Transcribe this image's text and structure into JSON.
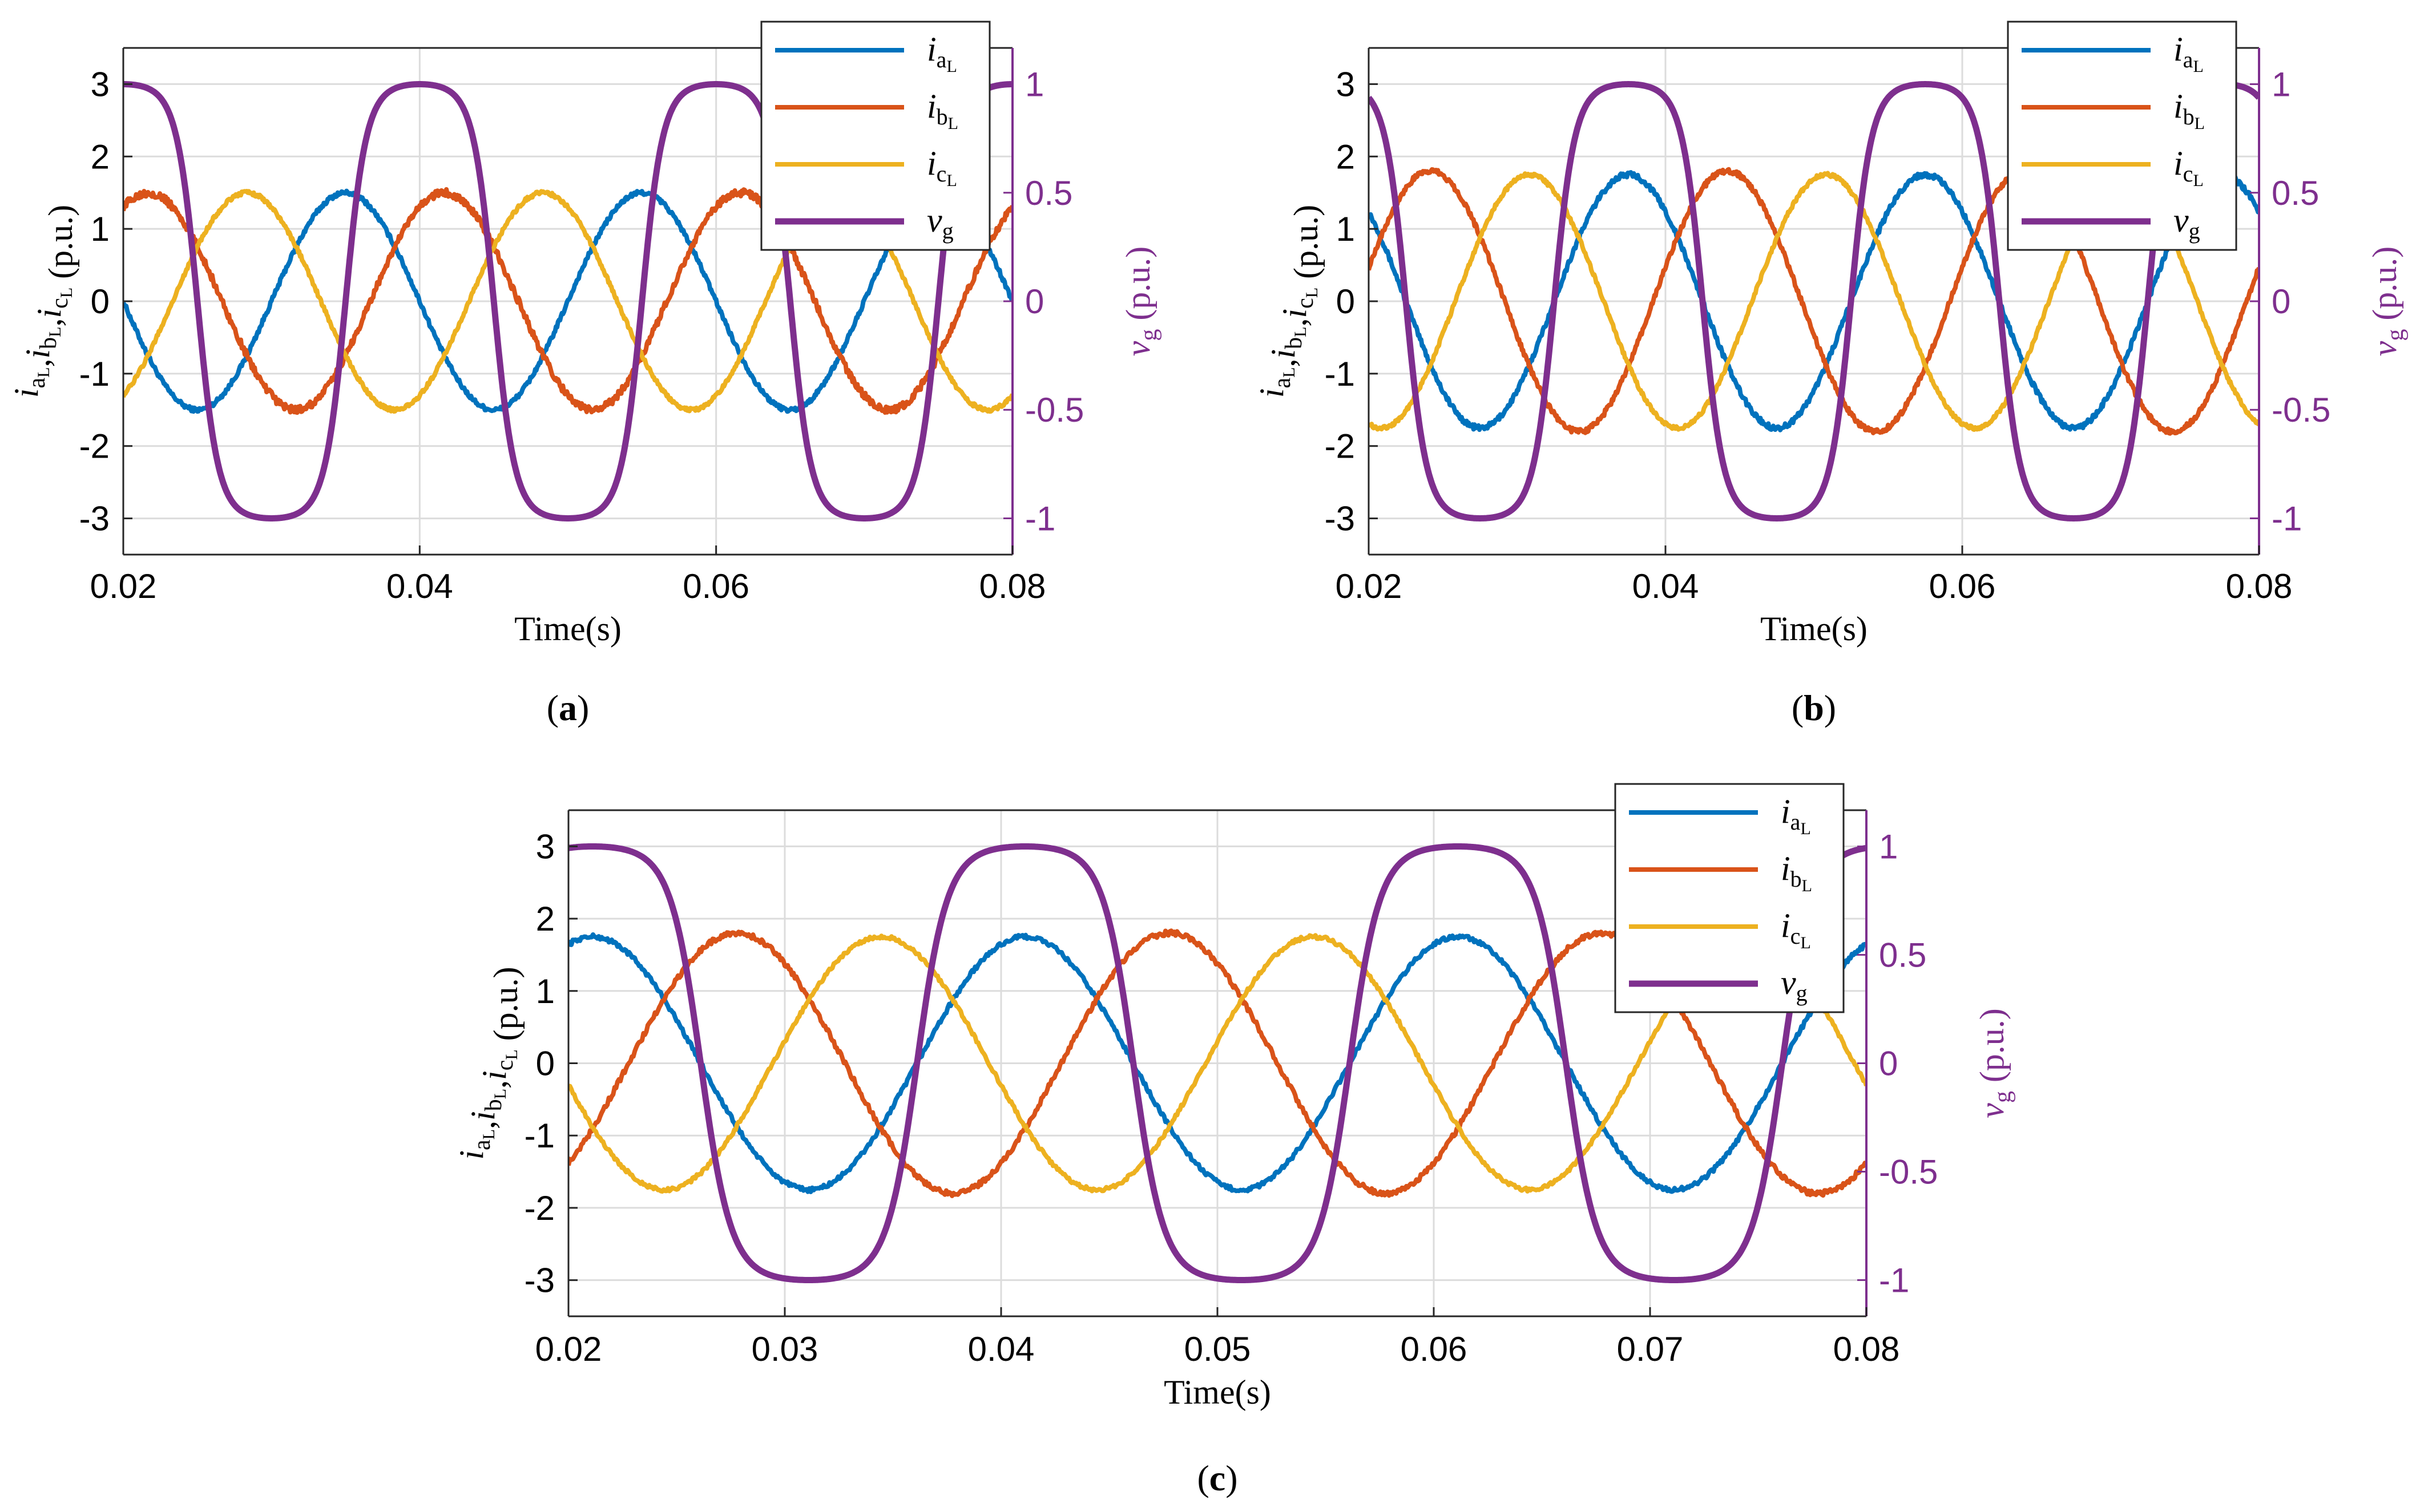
{
  "figure_description": "Three-phase load currents and grid voltage",
  "chart_data": [
    {
      "id": "a",
      "type": "line",
      "caption": "(a)",
      "xlabel": "Time(s)",
      "ylabel_left": {
        "vars": [
          "i",
          "a",
          ",",
          "i",
          "b",
          ",",
          "i",
          "c"
        ],
        "sub_L": "L",
        "unit": "(p.u.)"
      },
      "ylabel_right": {
        "var": "v",
        "sub": "g",
        "unit": "(p.u.)"
      },
      "xlim": [
        0.02,
        0.08
      ],
      "ylim_left": [
        -3.5,
        3.5
      ],
      "ylim_right": [
        -1.167,
        1.167
      ],
      "xticks": [
        0.02,
        0.04,
        0.06,
        0.08
      ],
      "xtick_labels": [
        "0.02",
        "0.04",
        "0.06",
        "0.08"
      ],
      "yticks_left": [
        3,
        2,
        1,
        0,
        -1,
        -2,
        -3
      ],
      "ytick_labels_left": [
        "3",
        "2",
        "1",
        "0",
        "-1",
        "-2",
        "-3"
      ],
      "yticks_right": [
        1,
        0.5,
        0,
        -0.5,
        -1
      ],
      "ytick_labels_right": [
        "1",
        "0.5",
        "0",
        "-0.5",
        "-1"
      ],
      "legend_position": "top-right",
      "series": [
        {
          "name": "i_aL",
          "label_main": "i",
          "label_sub": "a",
          "label_subsub": "L",
          "color": "#0072BD",
          "axis": "left",
          "amplitude": 1.5,
          "phase_deg": 90,
          "period": 0.02,
          "noise": 0.06
        },
        {
          "name": "i_bL",
          "label_main": "i",
          "label_sub": "b",
          "label_subsub": "L",
          "color": "#D95319",
          "axis": "left",
          "amplitude": 1.5,
          "phase_deg": -30,
          "period": 0.02,
          "noise": 0.1
        },
        {
          "name": "i_cL",
          "label_main": "i",
          "label_sub": "c",
          "label_subsub": "L",
          "color": "#EDB120",
          "axis": "left",
          "amplitude": 1.5,
          "phase_deg": 210,
          "period": 0.02,
          "noise": 0.05
        },
        {
          "name": "v_g",
          "label_main": "v",
          "label_sub": "g",
          "label_subsub": "",
          "color": "#7E2F8E",
          "axis": "right",
          "amplitude": 1.0,
          "phase_deg": 0,
          "period": 0.02,
          "noise": 0.0,
          "flat_top": true
        }
      ]
    },
    {
      "id": "b",
      "type": "line",
      "caption": "(b)",
      "xlabel": "Time(s)",
      "ylabel_left": {
        "vars": [
          "i",
          "a",
          ",",
          "i",
          "b",
          ",",
          "i",
          "c"
        ],
        "sub_L": "L",
        "unit": "(p.u.)"
      },
      "ylabel_right": {
        "var": "v",
        "sub": "g",
        "unit": "(p.u.)"
      },
      "xlim": [
        0.02,
        0.08
      ],
      "ylim_left": [
        -3.5,
        3.5
      ],
      "ylim_right": [
        -1.167,
        1.167
      ],
      "xticks": [
        0.02,
        0.04,
        0.06,
        0.08
      ],
      "xtick_labels": [
        "0.02",
        "0.04",
        "0.06",
        "0.08"
      ],
      "yticks_left": [
        3,
        2,
        1,
        0,
        -1,
        -2,
        -3
      ],
      "ytick_labels_left": [
        "3",
        "2",
        "1",
        "0",
        "-1",
        "-2",
        "-3"
      ],
      "yticks_right": [
        1,
        0.5,
        0,
        -0.5,
        -1
      ],
      "ytick_labels_right": [
        "1",
        "0.5",
        "0",
        "-0.5",
        "-1"
      ],
      "legend_position": "top-right",
      "series": [
        {
          "name": "i_aL",
          "label_main": "i",
          "label_sub": "a",
          "label_subsub": "L",
          "color": "#0072BD",
          "axis": "left",
          "amplitude": 1.75,
          "phase_deg": 45,
          "period": 0.02,
          "noise": 0.07
        },
        {
          "name": "i_bL",
          "label_main": "i",
          "label_sub": "b",
          "label_subsub": "L",
          "color": "#D95319",
          "axis": "left",
          "amplitude": 1.8,
          "phase_deg": -75,
          "period": 0.02,
          "noise": 0.07
        },
        {
          "name": "i_cL",
          "label_main": "i",
          "label_sub": "c",
          "label_subsub": "L",
          "color": "#EDB120",
          "axis": "left",
          "amplitude": 1.75,
          "phase_deg": 165,
          "period": 0.02,
          "noise": 0.05
        },
        {
          "name": "v_g",
          "label_main": "v",
          "label_sub": "g",
          "label_subsub": "",
          "color": "#7E2F8E",
          "axis": "right",
          "amplitude": 1.0,
          "phase_deg": 45,
          "period": 0.02,
          "noise": 0.0,
          "flat_top": true
        }
      ]
    },
    {
      "id": "c",
      "type": "line",
      "caption": "(c)",
      "xlabel": "Time(s)",
      "ylabel_left": {
        "vars": [
          "i",
          "a",
          ",",
          "i",
          "b",
          ",",
          "i",
          "c"
        ],
        "sub_L": "L",
        "unit": "(p.u.)"
      },
      "ylabel_right": {
        "var": "v",
        "sub": "g",
        "unit": "(p.u.)"
      },
      "xlim": [
        0.02,
        0.08
      ],
      "ylim_left": [
        -3.5,
        3.5
      ],
      "ylim_right": [
        -1.167,
        1.167
      ],
      "xticks": [
        0.02,
        0.03,
        0.04,
        0.05,
        0.06,
        0.07,
        0.08
      ],
      "xtick_labels": [
        "0.02",
        "0.03",
        "0.04",
        "0.05",
        "0.06",
        "0.07",
        "0.08"
      ],
      "yticks_left": [
        3,
        2,
        1,
        0,
        -1,
        -2,
        -3
      ],
      "ytick_labels_left": [
        "3",
        "2",
        "1",
        "0",
        "-1",
        "-2",
        "-3"
      ],
      "yticks_right": [
        1,
        0.5,
        0,
        -0.5,
        -1
      ],
      "ytick_labels_right": [
        "1",
        "0.5",
        "0",
        "-0.5",
        "-1"
      ],
      "legend_position": "top-right",
      "series": [
        {
          "name": "i_aL",
          "label_main": "i",
          "label_sub": "a",
          "label_subsub": "L",
          "color": "#0072BD",
          "axis": "left",
          "amplitude": 1.75,
          "phase_deg": -20,
          "period": 0.02,
          "noise": 0.06
        },
        {
          "name": "i_bL",
          "label_main": "i",
          "label_sub": "b",
          "label_subsub": "L",
          "color": "#D95319",
          "axis": "left",
          "amplitude": 1.8,
          "phase_deg": -140,
          "period": 0.02,
          "noise": 0.07
        },
        {
          "name": "i_cL",
          "label_main": "i",
          "label_sub": "c",
          "label_subsub": "L",
          "color": "#EDB120",
          "axis": "left",
          "amplitude": 1.75,
          "phase_deg": 100,
          "period": 0.02,
          "noise": 0.05
        },
        {
          "name": "v_g",
          "label_main": "v",
          "label_sub": "g",
          "label_subsub": "",
          "color": "#7E2F8E",
          "axis": "right",
          "amplitude": 1.0,
          "phase_deg": -20,
          "period": 0.02,
          "noise": 0.0,
          "flat_top": true
        }
      ]
    }
  ]
}
